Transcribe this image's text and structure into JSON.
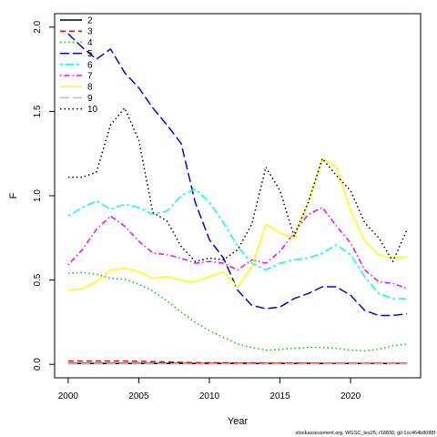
{
  "chart_data": {
    "type": "line",
    "title": "",
    "xlabel": "Year",
    "ylabel": "F",
    "xlim": [
      2000,
      2024
    ],
    "ylim": [
      0,
      2.0
    ],
    "x_ticks": [
      2000,
      2005,
      2010,
      2015,
      2020
    ],
    "y_ticks": [
      0.0,
      0.5,
      1.0,
      1.5,
      2.0
    ],
    "y_tick_labels": [
      "0.0",
      "0.5",
      "1.0",
      "1.5",
      "2.0"
    ],
    "grid": false,
    "legend_position": "top-left",
    "x": [
      2000,
      2001,
      2002,
      2003,
      2004,
      2005,
      2006,
      2007,
      2008,
      2009,
      2010,
      2011,
      2012,
      2013,
      2014,
      2015,
      2016,
      2017,
      2018,
      2019,
      2020,
      2021,
      2022,
      2023,
      2024
    ],
    "series": [
      {
        "name": "2",
        "color": "#000000",
        "dash": "solid",
        "values": [
          0.005,
          0.005,
          0.005,
          0.005,
          0.005,
          0.005,
          0.005,
          0.005,
          0.005,
          0.005,
          0.005,
          0.005,
          0.005,
          0.005,
          0.005,
          0.005,
          0.005,
          0.005,
          0.005,
          0.005,
          0.005,
          0.005,
          0.005,
          0.005,
          0.005
        ]
      },
      {
        "name": "3",
        "color": "#ff0000",
        "dash": "dashed",
        "values": [
          0.02,
          0.02,
          0.02,
          0.02,
          0.02,
          0.018,
          0.016,
          0.014,
          0.012,
          0.01,
          0.01,
          0.009,
          0.008,
          0.008,
          0.007,
          0.007,
          0.007,
          0.007,
          0.006,
          0.006,
          0.006,
          0.006,
          0.006,
          0.006,
          0.006
        ]
      },
      {
        "name": "4",
        "color": "#00cd00",
        "dash": "dotted",
        "values": [
          0.54,
          0.545,
          0.535,
          0.51,
          0.505,
          0.475,
          0.435,
          0.375,
          0.31,
          0.25,
          0.2,
          0.16,
          0.12,
          0.1,
          0.085,
          0.088,
          0.095,
          0.1,
          0.1,
          0.095,
          0.085,
          0.08,
          0.09,
          0.11,
          0.12
        ]
      },
      {
        "name": "5",
        "color": "#0000ff",
        "dash": "longdash",
        "values": [
          1.96,
          1.88,
          1.81,
          1.87,
          1.73,
          1.64,
          1.52,
          1.42,
          1.31,
          0.96,
          0.74,
          0.63,
          0.44,
          0.35,
          0.33,
          0.34,
          0.39,
          0.42,
          0.46,
          0.46,
          0.41,
          0.32,
          0.29,
          0.29,
          0.3
        ]
      },
      {
        "name": "6",
        "color": "#00ffff",
        "dash": "twodash",
        "values": [
          0.88,
          0.93,
          0.97,
          0.92,
          0.95,
          0.93,
          0.89,
          0.91,
          1.0,
          1.04,
          0.96,
          0.84,
          0.7,
          0.6,
          0.56,
          0.6,
          0.62,
          0.63,
          0.66,
          0.71,
          0.65,
          0.52,
          0.42,
          0.39,
          0.39
        ]
      },
      {
        "name": "7",
        "color": "#ff00ff",
        "dash": "dotdash",
        "values": [
          0.59,
          0.68,
          0.8,
          0.88,
          0.82,
          0.73,
          0.66,
          0.65,
          0.63,
          0.6,
          0.61,
          0.6,
          0.56,
          0.62,
          0.6,
          0.67,
          0.78,
          0.89,
          0.93,
          0.82,
          0.72,
          0.56,
          0.49,
          0.48,
          0.45
        ]
      },
      {
        "name": "8",
        "color": "#ffff00",
        "dash": "solid",
        "values": [
          0.44,
          0.45,
          0.49,
          0.56,
          0.57,
          0.55,
          0.51,
          0.52,
          0.5,
          0.49,
          0.52,
          0.55,
          0.46,
          0.58,
          0.83,
          0.78,
          0.75,
          0.96,
          1.22,
          1.17,
          0.91,
          0.73,
          0.65,
          0.63,
          0.64
        ]
      },
      {
        "name": "9",
        "color": "#bebebe",
        "dash": "longdash",
        "values": [
          0.002,
          0.002,
          0.002,
          0.002,
          0.002,
          0.002,
          0.002,
          0.002,
          0.002,
          0.002,
          0.002,
          0.002,
          0.002,
          0.002,
          0.002,
          0.002,
          0.002,
          0.002,
          0.002,
          0.002,
          0.002,
          0.002,
          0.002,
          0.002,
          0.002
        ]
      },
      {
        "name": "10",
        "color": "#000000",
        "dash": "dotted",
        "values": [
          1.11,
          1.11,
          1.14,
          1.42,
          1.52,
          1.33,
          0.9,
          0.85,
          0.7,
          0.61,
          0.63,
          0.62,
          0.68,
          0.83,
          1.17,
          1.03,
          0.76,
          0.96,
          1.22,
          1.12,
          1.03,
          0.84,
          0.75,
          0.61,
          0.8
        ]
      }
    ]
  },
  "footer": {
    "source_text": "stockassessment.org, WGSC_tes25, r18830, git:1cc464b8088f"
  }
}
